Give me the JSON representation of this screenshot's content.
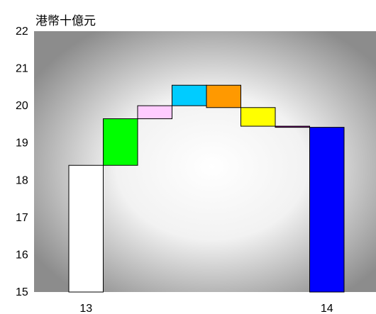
{
  "chart_data": {
    "type": "bar",
    "subtype": "waterfall",
    "ylabel": "港幣十億元",
    "ylim": [
      15,
      22
    ],
    "yticks": [
      15,
      16,
      17,
      18,
      19,
      20,
      21,
      22
    ],
    "xtick_labels": [
      "13",
      "14"
    ],
    "grid": false,
    "background": "radial gradient white to grey",
    "bars": [
      {
        "label": "13",
        "bottom": 15.0,
        "top": 18.4,
        "kind": "total",
        "color": "#ffffff"
      },
      {
        "bottom": 18.4,
        "top": 19.65,
        "kind": "change",
        "color": "#00ff00"
      },
      {
        "bottom": 19.65,
        "top": 20.0,
        "kind": "change",
        "color": "#ffccff"
      },
      {
        "bottom": 20.0,
        "top": 20.55,
        "kind": "change",
        "color": "#00ccff"
      },
      {
        "bottom": 19.95,
        "top": 20.55,
        "kind": "change",
        "color": "#ff9900"
      },
      {
        "bottom": 19.45,
        "top": 19.95,
        "kind": "change",
        "color": "#ffff00"
      },
      {
        "bottom": 19.42,
        "top": 19.45,
        "kind": "change",
        "color": "#990099"
      },
      {
        "label": "14",
        "bottom": 15.0,
        "top": 19.42,
        "kind": "total",
        "color": "#0000ff"
      }
    ]
  }
}
